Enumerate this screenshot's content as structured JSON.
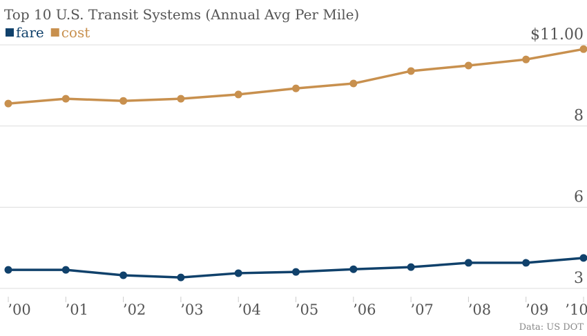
{
  "chart_data": {
    "type": "line",
    "title": "Top 10 U.S. Transit Systems (Annual Avg Per Mile)",
    "source": "Data: US DOT",
    "categories": [
      "’00",
      "’01",
      "’02",
      "’03",
      "’04",
      "’05",
      "’06",
      "’07",
      "’08",
      "’09",
      "’10"
    ],
    "series": [
      {
        "name": "fare",
        "color": "#10416b",
        "values": [
          3.61,
          3.61,
          3.43,
          3.36,
          3.5,
          3.54,
          3.63,
          3.7,
          3.84,
          3.84,
          4.0
        ]
      },
      {
        "name": "cost",
        "color": "#c8904e",
        "values": [
          9.07,
          9.23,
          9.16,
          9.23,
          9.37,
          9.57,
          9.73,
          10.14,
          10.32,
          10.52,
          10.86
        ]
      }
    ],
    "ylim": [
      3,
      11
    ],
    "yticks": [
      3,
      {
        "value": 5.667,
        "label": "6"
      },
      {
        "value": 8.333,
        "label": "8"
      },
      {
        "value": 11,
        "label": "$11.00"
      }
    ],
    "grid": true,
    "legend": "top-left"
  }
}
